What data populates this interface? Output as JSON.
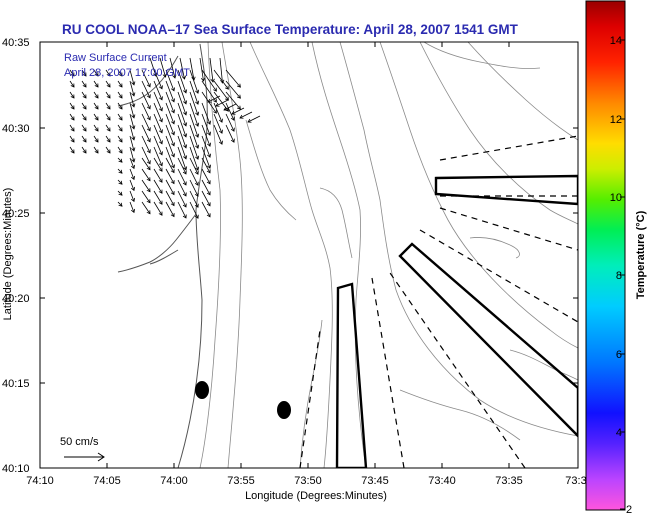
{
  "title": "RU COOL  NOAA–17  Sea Surface Temperature:  April 28, 2007 1541 GMT",
  "current_label_line1": "Raw Surface Current",
  "current_label_line2": "April 28, 2007 17:00 GMT",
  "scale_label": "50 cm/s",
  "xlabel": "Longitude (Degrees:Minutes)",
  "ylabel": "Latitude (Degrees:Minutes)",
  "x_ticks": [
    "74:10",
    "74:05",
    "74:00",
    "73:55",
    "73:50",
    "73:45",
    "73:40",
    "73:35",
    "73:3"
  ],
  "y_ticks": [
    "40:35",
    "40:30",
    "40:25",
    "40:20",
    "40:15",
    "40:10"
  ],
  "colorbar": {
    "title": "Temperature (°C)",
    "ticks": [
      "14",
      "12",
      "10",
      "8",
      "6",
      "4",
      "2"
    ],
    "colors": [
      "#ff55dd",
      "#9933ff",
      "#2222ff",
      "#0088ff",
      "#00ccff",
      "#00ee88",
      "#33ee00",
      "#ccee00",
      "#ffdd00",
      "#ff8800",
      "#ff3300",
      "#dd0000",
      "#990000"
    ]
  },
  "colors": {
    "title": "#2b2bb0",
    "note": "#2b2bb0",
    "axes": "#000000",
    "contour": "#888888",
    "coast": "#555555"
  }
}
